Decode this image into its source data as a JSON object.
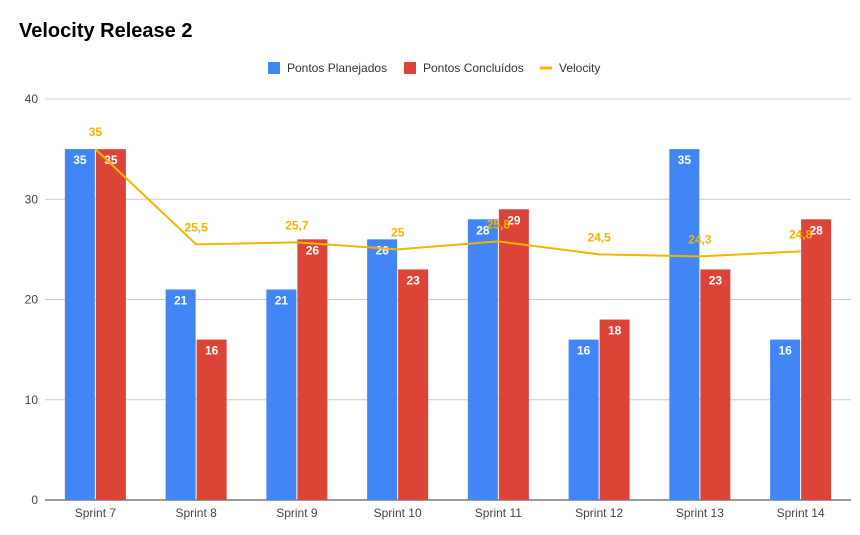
{
  "chart_data": {
    "type": "bar",
    "title": "Velocity Release 2",
    "categories": [
      "Sprint 7",
      "Sprint 8",
      "Sprint 9",
      "Sprint 10",
      "Sprint 11",
      "Sprint 12",
      "Sprint 13",
      "Sprint 14"
    ],
    "series": [
      {
        "name": "Pontos Planejados",
        "type": "bar",
        "color": "#4285f4",
        "values": [
          35,
          21,
          21,
          26,
          28,
          16,
          35,
          16
        ]
      },
      {
        "name": "Pontos Concluídos",
        "type": "bar",
        "color": "#db4437",
        "values": [
          35,
          16,
          26,
          23,
          29,
          18,
          23,
          28
        ]
      },
      {
        "name": "Velocity",
        "type": "line",
        "color": "#f4b400",
        "values": [
          35,
          25.5,
          25.7,
          25,
          25.8,
          24.5,
          24.3,
          24.8
        ],
        "labels": [
          "35",
          "25,5",
          "25,7",
          "25",
          "25,8",
          "24,5",
          "24,3",
          "24,8"
        ]
      }
    ],
    "ylim": [
      0,
      40
    ],
    "yticks": [
      0,
      10,
      20,
      30,
      40
    ],
    "grid": true,
    "legend": "top"
  }
}
